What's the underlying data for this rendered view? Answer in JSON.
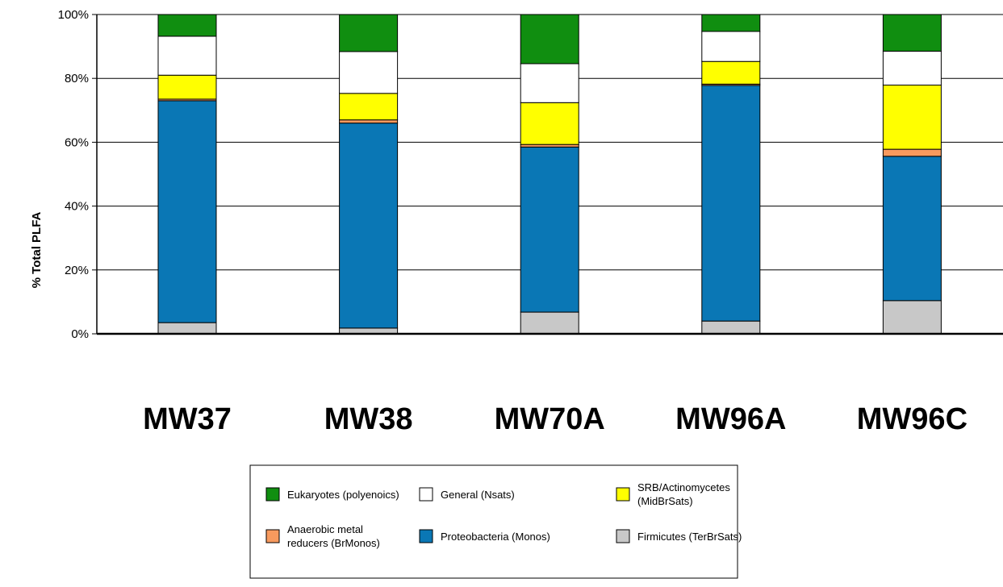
{
  "chart_data": {
    "type": "bar",
    "stacked": true,
    "percent": true,
    "ylabel": "% Total PLFA",
    "xlabel": "",
    "ylim": [
      0,
      100
    ],
    "yticks": [
      "0%",
      "20%",
      "40%",
      "60%",
      "80%",
      "100%"
    ],
    "grid": true,
    "legend_position": "bottom",
    "categories": [
      "MW37",
      "MW38",
      "MW70A",
      "MW96A",
      "MW96C"
    ],
    "series": [
      {
        "name": "Firmicutes (TerBrSats)",
        "color": "#c8c8c8",
        "values": [
          3.5,
          1.8,
          6.8,
          4.0,
          10.4
        ]
      },
      {
        "name": "Proteobacteria (Monos)",
        "color": "#0a77b5",
        "values": [
          69.5,
          64.2,
          51.7,
          73.8,
          45.2
        ]
      },
      {
        "name": "Anaerobic metal reducers (BrMonos)",
        "color": "#f79a5e",
        "values": [
          0.5,
          1.0,
          0.8,
          0.4,
          2.2
        ]
      },
      {
        "name": "SRB/Actinomycetes (MidBrSats)",
        "color": "#ffff00",
        "values": [
          7.5,
          8.3,
          13.1,
          7.1,
          20.1
        ]
      },
      {
        "name": "General (Nsats)",
        "color": "#ffffff",
        "values": [
          12.2,
          13.1,
          12.2,
          9.4,
          10.6
        ]
      },
      {
        "name": "Eukaryotes (polyenoics)",
        "color": "#108e10",
        "values": [
          6.8,
          11.6,
          15.4,
          5.3,
          11.5
        ]
      }
    ],
    "legend": {
      "rows": [
        [
          {
            "label": "Eukaryotes (polyenoics)",
            "color": "#108e10"
          },
          {
            "label": "General (Nsats)",
            "color": "#ffffff"
          },
          {
            "label": "SRB/Actinomycetes (MidBrSats)",
            "color": "#ffff00"
          }
        ],
        [
          {
            "label": "Anaerobic metal reducers (BrMonos)",
            "color": "#f79a5e"
          },
          {
            "label": "Proteobacteria (Monos)",
            "color": "#0a77b5"
          },
          {
            "label": "Firmicutes (TerBrSats)",
            "color": "#c8c8c8"
          }
        ]
      ]
    }
  }
}
